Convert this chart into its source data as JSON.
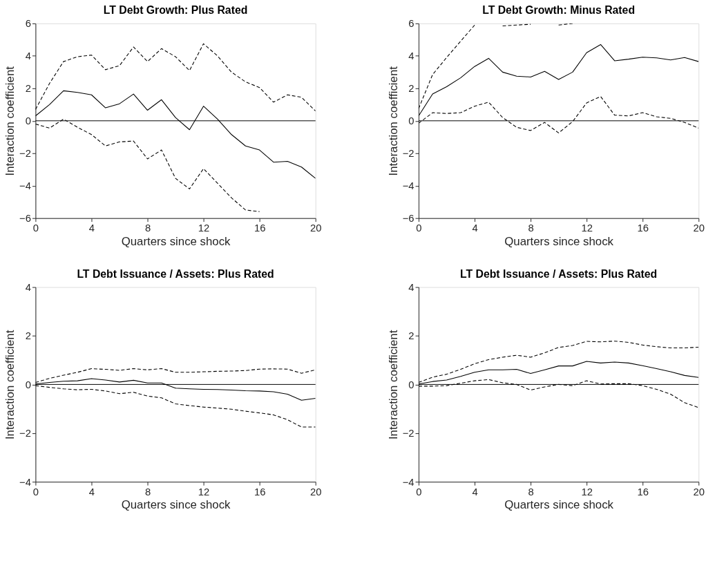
{
  "chart_data": [
    {
      "type": "line",
      "title": "LT Debt Growth: Plus Rated",
      "xlabel": "Quarters since shock",
      "ylabel": "Interaction coefficient",
      "x": [
        0,
        1,
        2,
        3,
        4,
        5,
        6,
        7,
        8,
        9,
        10,
        11,
        12,
        13,
        14,
        15,
        16,
        17,
        18,
        19,
        20
      ],
      "xlim": [
        0,
        20
      ],
      "xticks": [
        0,
        4,
        8,
        12,
        16,
        20
      ],
      "ylim": [
        -6,
        6
      ],
      "yticks": [
        -6,
        -4,
        -2,
        0,
        2,
        4,
        6
      ],
      "grid": false,
      "marker": "none",
      "series": [
        {
          "color": "#000000",
          "line_style": "solid",
          "values": [
            0.3,
            1.0,
            1.85,
            1.75,
            1.6,
            0.8,
            1.05,
            1.65,
            0.65,
            1.3,
            0.2,
            -0.55,
            0.9,
            0.1,
            -0.85,
            -1.55,
            -1.8,
            -2.55,
            -2.5,
            -2.85,
            -3.55
          ]
        },
        {
          "color": "#000000",
          "line_style": "dashed",
          "values": [
            0.7,
            2.3,
            3.65,
            3.95,
            4.05,
            3.15,
            3.4,
            4.55,
            3.65,
            4.45,
            3.95,
            3.1,
            4.75,
            4.0,
            3.0,
            2.4,
            2.05,
            1.15,
            1.6,
            1.45,
            0.6
          ]
        },
        {
          "color": "#000000",
          "line_style": "dashed",
          "values": [
            -0.2,
            -0.45,
            0.1,
            -0.4,
            -0.85,
            -1.55,
            -1.3,
            -1.25,
            -2.35,
            -1.8,
            -3.55,
            -4.2,
            -2.95,
            -3.85,
            -4.75,
            -5.5,
            -5.6,
            null,
            null,
            null,
            null
          ]
        }
      ],
      "ref_lines": [
        {
          "axis": "y",
          "value": 0,
          "color": "#000000",
          "line_style": "solid"
        }
      ]
    },
    {
      "type": "line",
      "title": "LT Debt Growth: Minus Rated",
      "xlabel": "Quarters since shock",
      "ylabel": "Interaction coefficient",
      "x": [
        0,
        1,
        2,
        3,
        4,
        5,
        6,
        7,
        8,
        9,
        10,
        11,
        12,
        13,
        14,
        15,
        16,
        17,
        18,
        19,
        20
      ],
      "xlim": [
        0,
        20
      ],
      "xticks": [
        0,
        4,
        8,
        12,
        16,
        20
      ],
      "ylim": [
        -6,
        6
      ],
      "yticks": [
        -6,
        -4,
        -2,
        0,
        2,
        4,
        6
      ],
      "grid": false,
      "marker": "none",
      "series": [
        {
          "color": "#000000",
          "line_style": "solid",
          "values": [
            0.3,
            1.65,
            2.1,
            2.65,
            3.35,
            3.85,
            3.0,
            2.75,
            2.7,
            3.05,
            2.55,
            3.0,
            4.2,
            4.7,
            3.7,
            3.8,
            3.92,
            3.88,
            3.75,
            3.9,
            3.65
          ]
        },
        {
          "color": "#000000",
          "line_style": "dashed",
          "values": [
            0.75,
            2.85,
            3.9,
            4.9,
            5.9,
            null,
            5.85,
            5.9,
            5.95,
            null,
            5.9,
            6.0,
            null,
            null,
            null,
            null,
            null,
            null,
            null,
            null,
            null
          ]
        },
        {
          "color": "#000000",
          "line_style": "dashed",
          "values": [
            -0.15,
            0.5,
            0.45,
            0.5,
            0.9,
            1.15,
            0.2,
            -0.4,
            -0.6,
            -0.1,
            -0.75,
            -0.05,
            1.1,
            1.5,
            0.35,
            0.3,
            0.5,
            0.25,
            0.15,
            -0.1,
            -0.45
          ]
        }
      ],
      "ref_lines": [
        {
          "axis": "y",
          "value": 0,
          "color": "#000000",
          "line_style": "solid"
        }
      ]
    },
    {
      "type": "line",
      "title": "LT Debt Issuance / Assets: Plus Rated",
      "xlabel": "Quarters since shock",
      "ylabel": "Interaction coefficient",
      "x": [
        0,
        1,
        2,
        3,
        4,
        5,
        6,
        7,
        8,
        9,
        10,
        11,
        12,
        13,
        14,
        15,
        16,
        17,
        18,
        19,
        20
      ],
      "xlim": [
        0,
        20
      ],
      "xticks": [
        0,
        4,
        8,
        12,
        16,
        20
      ],
      "ylim": [
        -4,
        4
      ],
      "yticks": [
        -4,
        -2,
        0,
        2,
        4
      ],
      "grid": false,
      "marker": "none",
      "series": [
        {
          "color": "#000000",
          "line_style": "solid",
          "values": [
            0.02,
            0.08,
            0.13,
            0.15,
            0.24,
            0.18,
            0.1,
            0.17,
            0.06,
            0.06,
            -0.15,
            -0.18,
            -0.2,
            -0.21,
            -0.23,
            -0.26,
            -0.27,
            -0.3,
            -0.4,
            -0.65,
            -0.57
          ]
        },
        {
          "color": "#000000",
          "line_style": "dashed",
          "values": [
            0.08,
            0.25,
            0.38,
            0.5,
            0.65,
            0.62,
            0.58,
            0.65,
            0.6,
            0.65,
            0.5,
            0.5,
            0.52,
            0.54,
            0.55,
            0.57,
            0.63,
            0.64,
            0.63,
            0.46,
            0.6
          ]
        },
        {
          "color": "#000000",
          "line_style": "dashed",
          "values": [
            -0.05,
            -0.12,
            -0.18,
            -0.22,
            -0.2,
            -0.27,
            -0.38,
            -0.32,
            -0.48,
            -0.55,
            -0.8,
            -0.87,
            -0.93,
            -0.97,
            -1.02,
            -1.1,
            -1.17,
            -1.25,
            -1.45,
            -1.75,
            -1.75
          ]
        }
      ],
      "ref_lines": [
        {
          "axis": "y",
          "value": 0,
          "color": "#000000",
          "line_style": "solid"
        }
      ]
    },
    {
      "type": "line",
      "title": "LT Debt Issuance / Assets: Plus Rated",
      "xlabel": "Quarters since shock",
      "ylabel": "Interaction coefficient",
      "x": [
        0,
        1,
        2,
        3,
        4,
        5,
        6,
        7,
        8,
        9,
        10,
        11,
        12,
        13,
        14,
        15,
        16,
        17,
        18,
        19,
        20
      ],
      "xlim": [
        0,
        20
      ],
      "xticks": [
        0,
        4,
        8,
        12,
        16,
        20
      ],
      "ylim": [
        -4,
        4
      ],
      "yticks": [
        -4,
        -2,
        0,
        2,
        4
      ],
      "grid": false,
      "marker": "none",
      "series": [
        {
          "color": "#000000",
          "line_style": "solid",
          "values": [
            0.02,
            0.12,
            0.18,
            0.33,
            0.5,
            0.6,
            0.6,
            0.62,
            0.45,
            0.6,
            0.76,
            0.76,
            0.95,
            0.88,
            0.92,
            0.88,
            0.77,
            0.65,
            0.52,
            0.37,
            0.29
          ]
        },
        {
          "color": "#000000",
          "line_style": "dashed",
          "values": [
            0.08,
            0.3,
            0.42,
            0.62,
            0.85,
            1.02,
            1.12,
            1.2,
            1.12,
            1.3,
            1.52,
            1.6,
            1.77,
            1.75,
            1.78,
            1.73,
            1.62,
            1.55,
            1.5,
            1.5,
            1.53
          ]
        },
        {
          "color": "#000000",
          "line_style": "dashed",
          "values": [
            -0.07,
            -0.07,
            -0.05,
            0.05,
            0.15,
            0.2,
            0.07,
            0.0,
            -0.23,
            -0.1,
            0.0,
            -0.05,
            0.15,
            0.02,
            0.03,
            0.03,
            -0.05,
            -0.2,
            -0.4,
            -0.75,
            -0.95
          ]
        }
      ],
      "ref_lines": [
        {
          "axis": "y",
          "value": 0,
          "color": "#000000",
          "line_style": "solid"
        }
      ]
    }
  ]
}
